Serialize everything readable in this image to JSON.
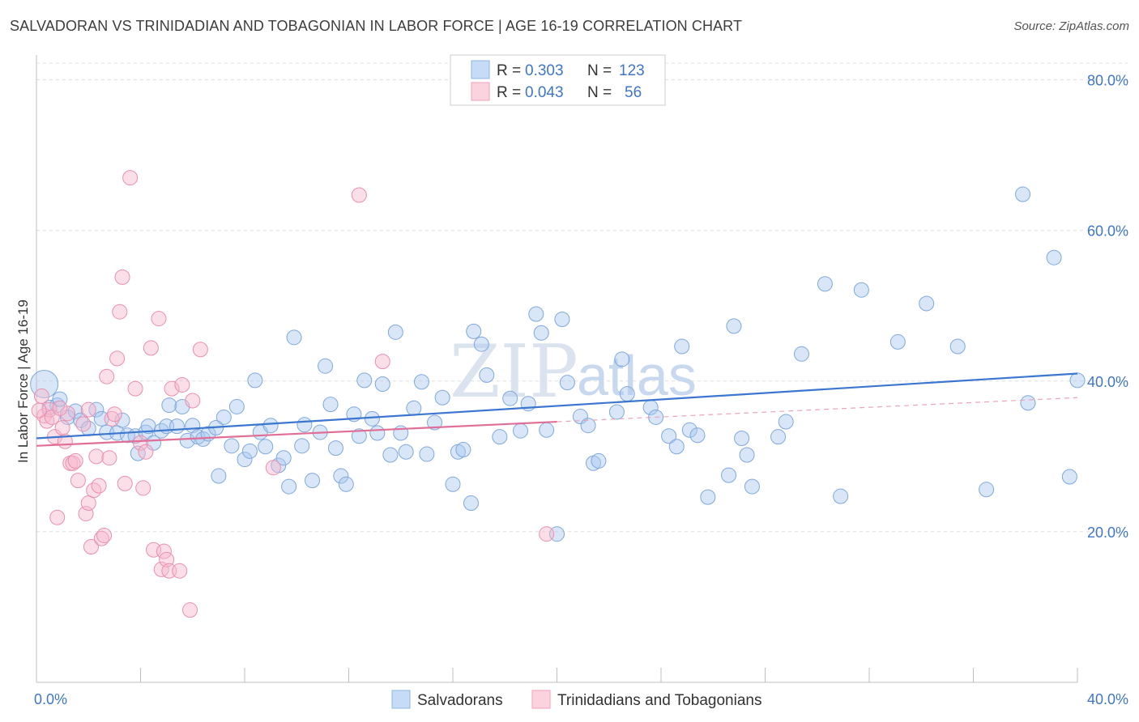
{
  "title": "SALVADORAN VS TRINIDADIAN AND TOBAGONIAN IN LABOR FORCE | AGE 16-19 CORRELATION CHART",
  "source": "Source: ZipAtlas.com",
  "watermark": {
    "zip": "ZIP",
    "atlas": "atlas"
  },
  "legend": {
    "rows": [
      {
        "r_label": "R =",
        "r_value": "0.303",
        "n_label": "N =",
        "n_value": "123",
        "color": "#a8c8f0"
      },
      {
        "r_label": "R =",
        "r_value": "0.043",
        "n_label": "N =",
        "n_value": "56",
        "color": "#f6b8cb"
      }
    ]
  },
  "bottom_legend": [
    {
      "label": "Salvadorans",
      "color": "#a8c8f0"
    },
    {
      "label": "Trinidadians and Tobagonians",
      "color": "#f6b8cb"
    }
  ],
  "chart_data": {
    "type": "scatter",
    "title": "SALVADORAN VS TRINIDADIAN AND TOBAGONIAN IN LABOR FORCE | AGE 16-19 CORRELATION CHART",
    "xlabel": "",
    "ylabel": "In Labor Force | Age 16-19",
    "xlim": [
      0,
      40
    ],
    "ylim": [
      0,
      82
    ],
    "x_tick_labels": [
      "0.0%",
      "40.0%"
    ],
    "y_ticks": [
      20,
      40,
      60,
      80
    ],
    "y_tick_labels": [
      "20.0%",
      "40.0%",
      "60.0%",
      "80.0%"
    ],
    "grid": true,
    "legend_position": "top-center",
    "colors": {
      "salvadorans": "#4a86d4",
      "trinidadians": "#e8769c"
    },
    "series": [
      {
        "name": "Salvadorans",
        "trend": {
          "x": [
            0,
            40
          ],
          "y": [
            32.4,
            41.0
          ]
        },
        "points": [
          [
            0.3,
            39.6
          ],
          [
            0.5,
            36.5
          ],
          [
            0.8,
            36.8
          ],
          [
            0.9,
            37.6
          ],
          [
            1.2,
            35.2
          ],
          [
            1.5,
            36.0
          ],
          [
            1.7,
            34.8
          ],
          [
            2.0,
            33.7
          ],
          [
            2.3,
            36.2
          ],
          [
            2.5,
            35.0
          ],
          [
            2.7,
            33.2
          ],
          [
            3.1,
            33.1
          ],
          [
            3.3,
            34.8
          ],
          [
            3.5,
            32.8
          ],
          [
            3.8,
            32.7
          ],
          [
            3.9,
            30.4
          ],
          [
            4.2,
            33.2
          ],
          [
            4.3,
            34.0
          ],
          [
            4.5,
            31.8
          ],
          [
            4.8,
            33.4
          ],
          [
            5.0,
            34.0
          ],
          [
            5.1,
            36.8
          ],
          [
            5.4,
            34.0
          ],
          [
            5.6,
            36.6
          ],
          [
            5.8,
            32.1
          ],
          [
            6.0,
            34.1
          ],
          [
            6.2,
            32.6
          ],
          [
            6.4,
            32.3
          ],
          [
            6.6,
            33.0
          ],
          [
            6.9,
            33.8
          ],
          [
            7.0,
            27.4
          ],
          [
            7.2,
            35.2
          ],
          [
            7.5,
            31.4
          ],
          [
            7.7,
            36.6
          ],
          [
            8.0,
            29.6
          ],
          [
            8.2,
            30.7
          ],
          [
            8.4,
            40.1
          ],
          [
            8.6,
            33.2
          ],
          [
            8.8,
            31.3
          ],
          [
            9.0,
            34.1
          ],
          [
            9.3,
            28.8
          ],
          [
            9.5,
            29.8
          ],
          [
            9.7,
            26.0
          ],
          [
            9.9,
            45.8
          ],
          [
            10.2,
            31.4
          ],
          [
            10.3,
            34.2
          ],
          [
            10.6,
            26.8
          ],
          [
            10.9,
            33.2
          ],
          [
            11.1,
            42.0
          ],
          [
            11.3,
            36.9
          ],
          [
            11.5,
            31.1
          ],
          [
            11.7,
            27.4
          ],
          [
            11.9,
            26.3
          ],
          [
            12.2,
            35.6
          ],
          [
            12.4,
            32.7
          ],
          [
            12.6,
            40.1
          ],
          [
            12.9,
            35.0
          ],
          [
            13.1,
            33.1
          ],
          [
            13.3,
            39.6
          ],
          [
            13.6,
            30.2
          ],
          [
            13.8,
            46.5
          ],
          [
            14.0,
            33.1
          ],
          [
            14.2,
            30.6
          ],
          [
            14.5,
            36.4
          ],
          [
            14.8,
            39.9
          ],
          [
            15.0,
            30.3
          ],
          [
            15.3,
            34.5
          ],
          [
            15.6,
            37.8
          ],
          [
            16.0,
            26.3
          ],
          [
            16.2,
            30.6
          ],
          [
            16.4,
            30.9
          ],
          [
            16.7,
            23.8
          ],
          [
            16.8,
            46.6
          ],
          [
            17.1,
            44.9
          ],
          [
            17.3,
            40.8
          ],
          [
            17.8,
            32.6
          ],
          [
            18.2,
            37.7
          ],
          [
            18.6,
            33.4
          ],
          [
            18.9,
            37.0
          ],
          [
            19.2,
            48.9
          ],
          [
            19.4,
            46.4
          ],
          [
            19.6,
            33.5
          ],
          [
            20.0,
            19.7
          ],
          [
            20.2,
            48.2
          ],
          [
            20.4,
            39.8
          ],
          [
            20.9,
            35.3
          ],
          [
            21.2,
            34.1
          ],
          [
            21.4,
            29.1
          ],
          [
            21.6,
            29.4
          ],
          [
            22.3,
            35.9
          ],
          [
            22.5,
            42.9
          ],
          [
            22.7,
            38.3
          ],
          [
            23.6,
            36.5
          ],
          [
            23.8,
            35.2
          ],
          [
            24.3,
            32.7
          ],
          [
            24.6,
            31.3
          ],
          [
            24.8,
            44.6
          ],
          [
            25.1,
            33.5
          ],
          [
            25.4,
            32.8
          ],
          [
            25.8,
            24.6
          ],
          [
            26.6,
            27.5
          ],
          [
            26.8,
            47.3
          ],
          [
            27.1,
            32.4
          ],
          [
            27.3,
            30.2
          ],
          [
            27.5,
            26.0
          ],
          [
            28.5,
            32.6
          ],
          [
            28.8,
            34.6
          ],
          [
            29.4,
            43.6
          ],
          [
            30.3,
            52.9
          ],
          [
            30.9,
            24.7
          ],
          [
            31.7,
            52.1
          ],
          [
            33.1,
            45.2
          ],
          [
            34.2,
            50.3
          ],
          [
            35.4,
            44.6
          ],
          [
            36.5,
            25.6
          ],
          [
            38.1,
            37.1
          ],
          [
            39.1,
            56.4
          ],
          [
            39.7,
            27.3
          ],
          [
            40.0,
            40.1
          ],
          [
            37.9,
            64.8
          ]
        ]
      },
      {
        "name": "Trinidadians and Tobagonians",
        "trend": {
          "x": [
            0,
            20
          ],
          "y": [
            31.4,
            34.6
          ]
        },
        "points": [
          [
            0.2,
            38.0
          ],
          [
            0.3,
            35.4
          ],
          [
            0.4,
            34.7
          ],
          [
            0.5,
            36.2
          ],
          [
            0.6,
            35.2
          ],
          [
            0.7,
            32.6
          ],
          [
            0.8,
            21.9
          ],
          [
            1.0,
            33.8
          ],
          [
            1.1,
            32.0
          ],
          [
            1.3,
            29.1
          ],
          [
            1.4,
            29.1
          ],
          [
            1.5,
            29.4
          ],
          [
            1.6,
            26.8
          ],
          [
            1.8,
            34.3
          ],
          [
            1.9,
            22.4
          ],
          [
            2.0,
            23.8
          ],
          [
            2.1,
            18.0
          ],
          [
            2.2,
            25.5
          ],
          [
            2.3,
            30.0
          ],
          [
            2.4,
            26.1
          ],
          [
            2.5,
            19.1
          ],
          [
            2.6,
            19.5
          ],
          [
            2.7,
            40.6
          ],
          [
            2.8,
            29.8
          ],
          [
            2.9,
            35.0
          ],
          [
            3.0,
            35.6
          ],
          [
            3.1,
            43.0
          ],
          [
            3.2,
            49.2
          ],
          [
            3.3,
            53.8
          ],
          [
            3.4,
            26.4
          ],
          [
            3.6,
            67.0
          ],
          [
            3.8,
            39.0
          ],
          [
            4.0,
            31.8
          ],
          [
            4.1,
            25.8
          ],
          [
            4.2,
            30.6
          ],
          [
            4.4,
            44.4
          ],
          [
            4.5,
            17.6
          ],
          [
            4.7,
            48.3
          ],
          [
            4.8,
            15.0
          ],
          [
            4.9,
            17.4
          ],
          [
            5.0,
            16.3
          ],
          [
            5.1,
            14.8
          ],
          [
            5.2,
            39.0
          ],
          [
            5.5,
            14.8
          ],
          [
            5.6,
            39.5
          ],
          [
            5.9,
            9.6
          ],
          [
            6.3,
            44.2
          ],
          [
            9.1,
            28.5
          ],
          [
            12.4,
            64.7
          ],
          [
            13.3,
            42.6
          ],
          [
            19.6,
            19.7
          ],
          [
            6.0,
            37.4
          ],
          [
            2.0,
            36.2
          ],
          [
            1.2,
            35.7
          ],
          [
            0.9,
            36.4
          ],
          [
            0.1,
            36.1
          ]
        ]
      }
    ]
  }
}
